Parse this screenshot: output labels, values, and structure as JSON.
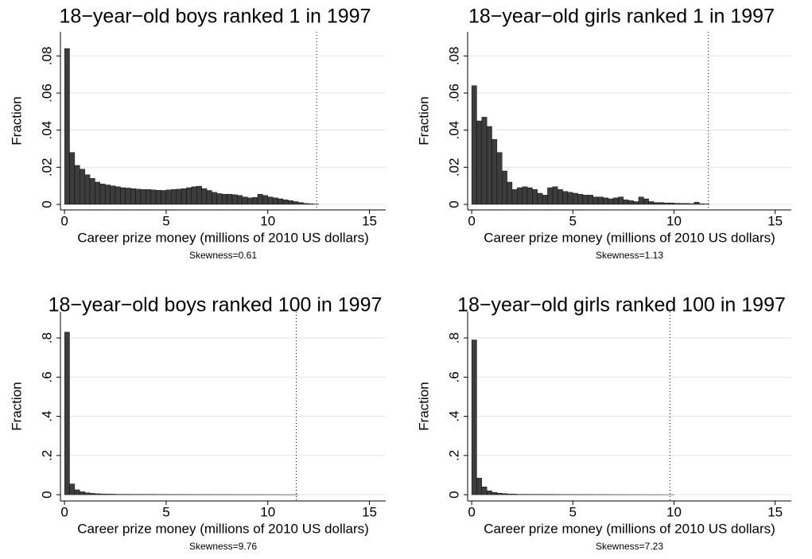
{
  "chart_data": [
    {
      "type": "histogram",
      "title": "18−year−old boys ranked 1 in 1997",
      "xlabel": "Career prize money (millions of 2010 US dollars)",
      "ylabel": "Fraction",
      "annotation": "Skewness=0.61",
      "color": "#3c3c3c",
      "grid": true,
      "reference_line": 12.4,
      "bins": [
        0,
        0.25,
        0.5,
        0.75,
        1,
        1.25,
        1.5,
        1.75,
        2,
        2.25,
        2.5,
        2.75,
        3,
        3.25,
        3.5,
        3.75,
        4,
        4.25,
        4.5,
        4.75,
        5,
        5.25,
        5.5,
        5.75,
        6,
        6.25,
        6.5,
        6.75,
        7,
        7.25,
        7.5,
        7.75,
        8,
        8.25,
        8.5,
        8.75,
        9,
        9.25,
        9.5,
        9.75,
        10,
        10.25,
        10.5,
        10.75,
        11,
        11.25,
        11.5,
        11.75,
        12,
        12.25,
        12.5
      ],
      "values": [
        0.084,
        0.028,
        0.021,
        0.019,
        0.016,
        0.014,
        0.012,
        0.011,
        0.0105,
        0.01,
        0.0095,
        0.009,
        0.0088,
        0.0085,
        0.0082,
        0.008,
        0.008,
        0.0078,
        0.0076,
        0.0075,
        0.0078,
        0.008,
        0.0082,
        0.0085,
        0.009,
        0.0095,
        0.0098,
        0.0085,
        0.0075,
        0.0065,
        0.0058,
        0.0055,
        0.0055,
        0.0052,
        0.0048,
        0.004,
        0.0035,
        0.0038,
        0.0055,
        0.0048,
        0.004,
        0.0035,
        0.003,
        0.0025,
        0.002,
        0.0015,
        0.001,
        0.0005,
        0.0003,
        0.0001
      ],
      "xlim": [
        -0.2,
        15.8
      ],
      "xticks": [
        0,
        5,
        10,
        15
      ],
      "ylim": [
        -0.003,
        0.093
      ],
      "yticks": [
        0,
        {
          "value": 0.02,
          "label": ".02"
        },
        {
          "value": 0.04,
          "label": ".04"
        },
        {
          "value": 0.06,
          "label": ".06"
        },
        {
          "value": 0.08,
          "label": ".08"
        }
      ]
    },
    {
      "type": "histogram",
      "title": "18−year−old girls ranked 1 in 1997",
      "xlabel": "Career prize money (millions of 2010 US dollars)",
      "ylabel": "Fraction",
      "annotation": "Skewness=1.13",
      "color": "#3c3c3c",
      "grid": true,
      "reference_line": 11.7,
      "bins": [
        0,
        0.25,
        0.5,
        0.75,
        1,
        1.25,
        1.5,
        1.75,
        2,
        2.25,
        2.5,
        2.75,
        3,
        3.25,
        3.5,
        3.75,
        4,
        4.25,
        4.5,
        4.75,
        5,
        5.25,
        5.5,
        5.75,
        6,
        6.25,
        6.5,
        6.75,
        7,
        7.25,
        7.5,
        7.75,
        8,
        8.25,
        8.5,
        8.75,
        9,
        9.25,
        9.5,
        9.75,
        10,
        10.25,
        10.5,
        10.75,
        11,
        11.25,
        11.5,
        11.75,
        12,
        12.25,
        12.5
      ],
      "values": [
        0.064,
        0.045,
        0.047,
        0.042,
        0.035,
        0.028,
        0.018,
        0.012,
        0.008,
        0.009,
        0.0095,
        0.009,
        0.008,
        0.006,
        0.005,
        0.009,
        0.0095,
        0.008,
        0.007,
        0.0065,
        0.006,
        0.0055,
        0.005,
        0.005,
        0.004,
        0.004,
        0.0035,
        0.003,
        0.0035,
        0.004,
        0.0025,
        0.002,
        0.0015,
        0.004,
        0.003,
        0.0015,
        0.001,
        0.001,
        0.0008,
        0.0008,
        0.0006,
        0.0005,
        0.0005,
        0.0004,
        0.0012,
        0.0003,
        0.0002,
        0,
        0,
        0
      ],
      "xlim": [
        -0.2,
        15.8
      ],
      "xticks": [
        0,
        5,
        10,
        15
      ],
      "ylim": [
        -0.003,
        0.093
      ],
      "yticks": [
        0,
        {
          "value": 0.02,
          "label": ".02"
        },
        {
          "value": 0.04,
          "label": ".04"
        },
        {
          "value": 0.06,
          "label": ".06"
        },
        {
          "value": 0.08,
          "label": ".08"
        }
      ]
    },
    {
      "type": "histogram",
      "title": "18−year−old boys ranked 100 in 1997",
      "xlabel": "Career prize money (millions of 2010 US dollars)",
      "ylabel": "Fraction",
      "annotation": "Skewness=9.76",
      "color": "#3c3c3c",
      "grid": true,
      "reference_line": 11.4,
      "bins": [
        0,
        0.25,
        0.5,
        0.75,
        1,
        1.25,
        1.5,
        1.75,
        2,
        2.25,
        2.5,
        2.75,
        3,
        3.25,
        3.5,
        3.75,
        4,
        4.25,
        4.5,
        4.75,
        5,
        5.25,
        5.5,
        5.75,
        6,
        6.25,
        6.5,
        6.75,
        7,
        7.25,
        7.5,
        7.75,
        8,
        8.25,
        8.5,
        8.75,
        9,
        9.25,
        9.5,
        9.75,
        10,
        10.25,
        10.5,
        10.75,
        11,
        11.25,
        11.5,
        11.75,
        12,
        12.25,
        12.5
      ],
      "values": [
        0.83,
        0.055,
        0.025,
        0.015,
        0.01,
        0.007,
        0.005,
        0.004,
        0.003,
        0.003,
        0.002,
        0.002,
        0.002,
        0.0018,
        0.0016,
        0.0015,
        0.0014,
        0.0013,
        0.0012,
        0.0012,
        0.0011,
        0.001,
        0.001,
        0.001,
        0.0009,
        0.0009,
        0.0008,
        0.0008,
        0.0008,
        0.0007,
        0.0007,
        0.0007,
        0.0006,
        0.0006,
        0.0006,
        0.0005,
        0.0005,
        0.0005,
        0.0005,
        0.0004,
        0.0004,
        0.0004,
        0.0003,
        0.0003,
        0.0003,
        0.0002,
        0,
        0,
        0,
        0
      ],
      "xlim": [
        -0.2,
        15.8
      ],
      "xticks": [
        0,
        5,
        10,
        15
      ],
      "ylim": [
        -0.032,
        0.934
      ],
      "yticks": [
        0,
        {
          "value": 0.2,
          "label": ".2"
        },
        {
          "value": 0.4,
          "label": ".4"
        },
        {
          "value": 0.6,
          "label": ".6"
        },
        {
          "value": 0.8,
          "label": ".8"
        }
      ]
    },
    {
      "type": "histogram",
      "title": "18−year−old girls ranked 100 in 1997",
      "xlabel": "Career prize money (millions of 2010 US dollars)",
      "ylabel": "Fraction",
      "annotation": "Skewness=7.23",
      "color": "#3c3c3c",
      "grid": true,
      "reference_line": 9.8,
      "bins": [
        0,
        0.25,
        0.5,
        0.75,
        1,
        1.25,
        1.5,
        1.75,
        2,
        2.25,
        2.5,
        2.75,
        3,
        3.25,
        3.5,
        3.75,
        4,
        4.25,
        4.5,
        4.75,
        5,
        5.25,
        5.5,
        5.75,
        6,
        6.25,
        6.5,
        6.75,
        7,
        7.25,
        7.5,
        7.75,
        8,
        8.25,
        8.5,
        8.75,
        9,
        9.25,
        9.5,
        9.75,
        10,
        10.25,
        10.5,
        10.75,
        11,
        11.25,
        11.5,
        11.75,
        12,
        12.25,
        12.5
      ],
      "values": [
        0.79,
        0.085,
        0.04,
        0.02,
        0.012,
        0.008,
        0.006,
        0.004,
        0.003,
        0.002,
        0.002,
        0.0018,
        0.0016,
        0.0015,
        0.0014,
        0.0013,
        0.0012,
        0.0011,
        0.001,
        0.001,
        0.0009,
        0.0009,
        0.0008,
        0.0008,
        0.0007,
        0.0007,
        0.0006,
        0.0006,
        0.0005,
        0.0005,
        0.0005,
        0.0004,
        0.0004,
        0.0004,
        0.0003,
        0.0003,
        0.0003,
        0.0002,
        0.0002,
        0.0002,
        0,
        0,
        0,
        0,
        0,
        0,
        0,
        0,
        0,
        0
      ],
      "xlim": [
        -0.2,
        15.8
      ],
      "xticks": [
        0,
        5,
        10,
        15
      ],
      "ylim": [
        -0.032,
        0.934
      ],
      "yticks": [
        0,
        {
          "value": 0.2,
          "label": ".2"
        },
        {
          "value": 0.4,
          "label": ".4"
        },
        {
          "value": 0.6,
          "label": ".6"
        },
        {
          "value": 0.8,
          "label": ".8"
        }
      ]
    }
  ]
}
